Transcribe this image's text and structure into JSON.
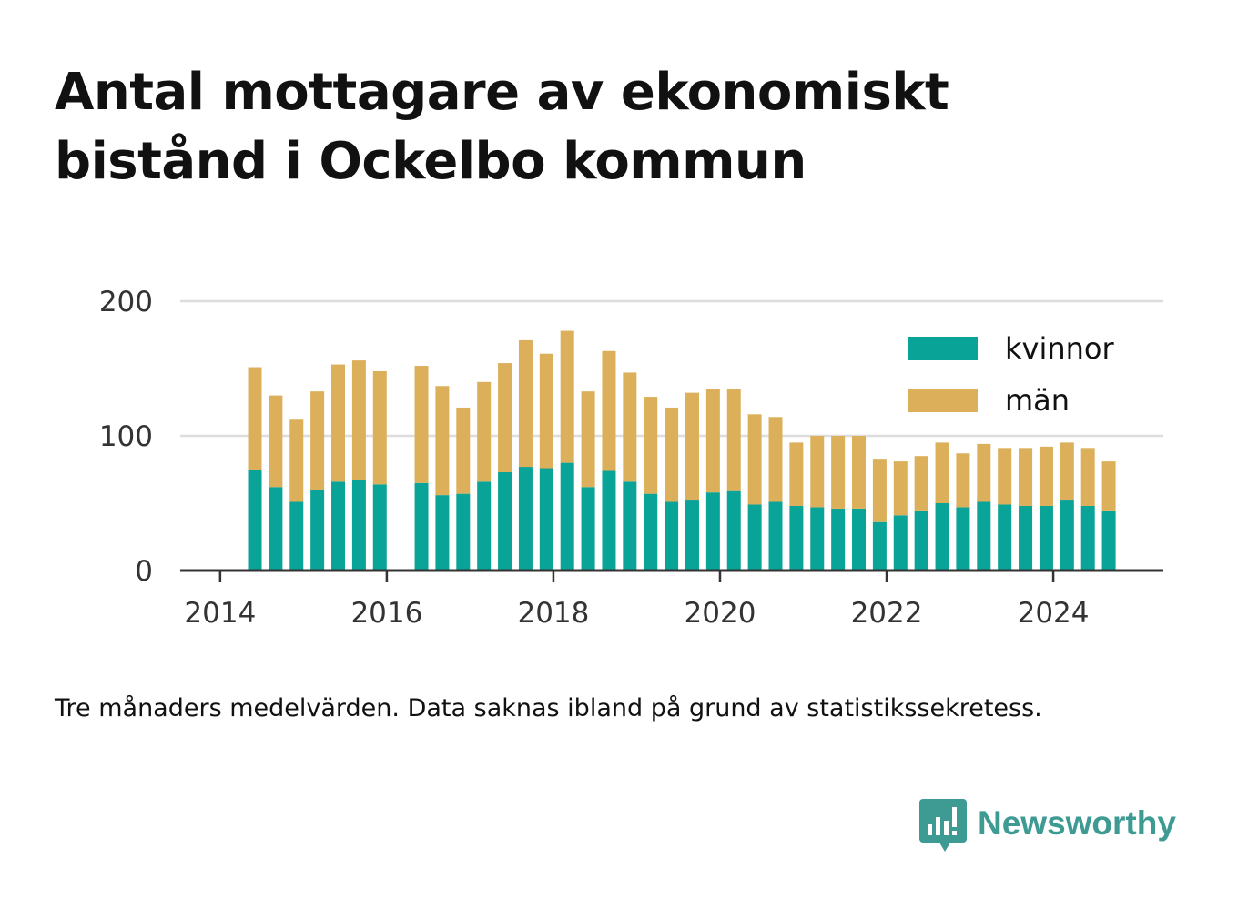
{
  "title": "Antal mottagare av ekonomiskt bistånd i Ockelbo kommun",
  "note": "Tre månaders medelvärden. Data saknas ibland på grund av statistikssekretess.",
  "brand": {
    "name": "Newsworthy",
    "icon": "bar-chart-speech-bubble-icon",
    "color": "#3d9b93"
  },
  "colors": {
    "kvinnor": "#0aa398",
    "man": "#dcaf5a",
    "grid": "#dddddd",
    "axis": "#333333",
    "text": "#333333"
  },
  "chart_data": {
    "type": "bar",
    "stacked": true,
    "title": "Antal mottagare av ekonomiskt bistånd i Ockelbo kommun",
    "xlabel": "",
    "ylabel": "",
    "ylim": [
      0,
      200
    ],
    "y_ticks": [
      "0",
      "100",
      "200"
    ],
    "x_ticks": [
      "2014",
      "2016",
      "2018",
      "2020",
      "2022",
      "2024"
    ],
    "grid": true,
    "legend_position": "top-right",
    "categories": [
      "2014-06",
      "2014-09",
      "2014-12",
      "2015-03",
      "2015-06",
      "2015-09",
      "2015-12",
      "2016-03",
      "2016-06",
      "2016-09",
      "2016-12",
      "2017-03",
      "2017-06",
      "2017-09",
      "2017-12",
      "2018-03",
      "2018-06",
      "2018-09",
      "2018-12",
      "2019-03",
      "2019-06",
      "2019-09",
      "2019-12",
      "2020-03",
      "2020-06",
      "2020-09",
      "2020-12",
      "2021-03",
      "2021-06",
      "2021-09",
      "2021-12",
      "2022-03",
      "2022-06",
      "2022-09",
      "2022-12",
      "2023-03",
      "2023-06",
      "2023-09",
      "2023-12",
      "2024-03",
      "2024-06",
      "2024-09"
    ],
    "series": [
      {
        "name": "kvinnor",
        "color": "#0aa398",
        "values": [
          75,
          62,
          51,
          60,
          66,
          67,
          64,
          null,
          65,
          56,
          57,
          66,
          73,
          77,
          76,
          80,
          62,
          74,
          66,
          57,
          51,
          52,
          58,
          59,
          49,
          51,
          48,
          47,
          46,
          46,
          36,
          41,
          44,
          50,
          47,
          51,
          49,
          48,
          48,
          52,
          48,
          44
        ]
      },
      {
        "name": "män",
        "color": "#dcaf5a",
        "values": [
          76,
          68,
          61,
          73,
          87,
          89,
          84,
          null,
          87,
          81,
          64,
          74,
          81,
          94,
          85,
          98,
          71,
          89,
          81,
          72,
          70,
          80,
          77,
          76,
          67,
          63,
          47,
          53,
          54,
          54,
          47,
          40,
          41,
          45,
          40,
          43,
          42,
          43,
          44,
          43,
          43,
          37
        ]
      }
    ]
  }
}
